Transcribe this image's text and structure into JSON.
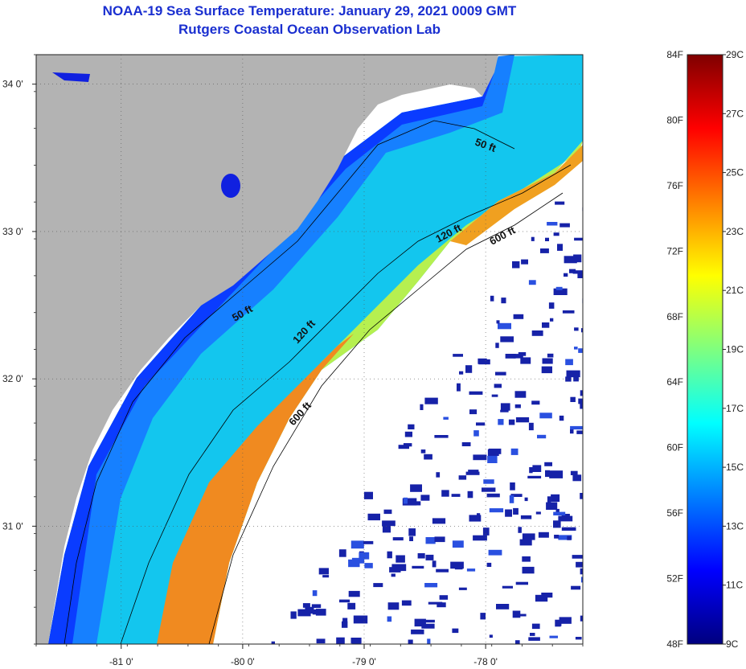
{
  "title": {
    "line1": "NOAA-19 Sea Surface Temperature:  January 29, 2021 0009 GMT",
    "line2": "Rutgers Coastal Ocean Observation Lab"
  },
  "map": {
    "lon_range": [
      -81.7,
      -77.2
    ],
    "lat_range": [
      30.2,
      34.2
    ],
    "lon_ticks": [
      {
        "value": -81,
        "label": "-81 0'"
      },
      {
        "value": -80,
        "label": "-80 0'"
      },
      {
        "value": -79,
        "label": "-79 0'"
      },
      {
        "value": -78,
        "label": "-78 0'"
      }
    ],
    "lat_ticks": [
      {
        "value": 34,
        "label": "34 0'"
      },
      {
        "value": 33,
        "label": "33 0'"
      },
      {
        "value": 32,
        "label": "32 0'"
      },
      {
        "value": 31,
        "label": "31 0'"
      }
    ],
    "contour_labels": [
      "50 ft",
      "120 ft",
      "600 ft",
      "50 ft",
      "120 ft",
      "600 ft"
    ],
    "colors": {
      "land": "#b3b3b3",
      "cloud": "#ffffff",
      "contour": "#000000"
    }
  },
  "colorbar": {
    "fahrenheit": [
      "84F",
      "80F",
      "76F",
      "72F",
      "68F",
      "64F",
      "60F",
      "56F",
      "52F",
      "48F"
    ],
    "celsius": [
      "29C",
      "27C",
      "25C",
      "23C",
      "21C",
      "19C",
      "17C",
      "15C",
      "13C",
      "11C",
      "9C"
    ],
    "stops": [
      "#00007f",
      "#0000ff",
      "#007fff",
      "#00ffff",
      "#7fff7f",
      "#ffff00",
      "#ff7f00",
      "#ff0000",
      "#7f0000"
    ]
  }
}
